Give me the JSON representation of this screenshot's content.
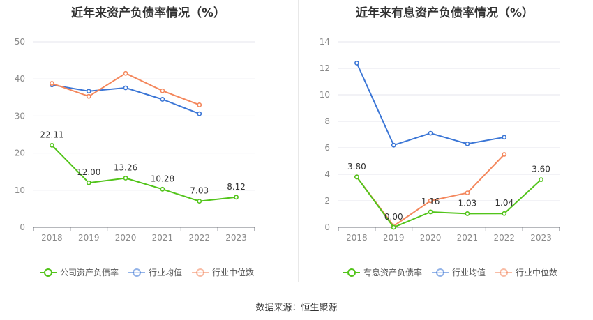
{
  "source_label": "数据来源：恒生聚源",
  "chart_data": [
    {
      "type": "line",
      "title": "近年来资产负债率情况（%）",
      "categories": [
        "2018",
        "2019",
        "2020",
        "2021",
        "2022",
        "2023"
      ],
      "ylim": [
        0,
        50
      ],
      "yticks": [
        0,
        10,
        20,
        30,
        40,
        50
      ],
      "grid": true,
      "legend_position": "bottom",
      "series": [
        {
          "name": "公司资产负债率",
          "color": "#52c41a",
          "values": [
            22.11,
            12.0,
            13.26,
            10.28,
            7.03,
            8.12
          ],
          "labels": [
            "22.11",
            "12.00",
            "13.26",
            "10.28",
            "7.03",
            "8.12"
          ]
        },
        {
          "name": "行业均值",
          "color": "#3b76d6",
          "values": [
            38.4,
            36.7,
            37.6,
            34.5,
            30.6,
            null
          ]
        },
        {
          "name": "行业中位数",
          "color": "#f4875c",
          "values": [
            38.8,
            35.3,
            41.5,
            36.8,
            33.0,
            null
          ]
        }
      ]
    },
    {
      "type": "line",
      "title": "近年来有息资产负债率情况（%）",
      "categories": [
        "2018",
        "2019",
        "2020",
        "2021",
        "2022",
        "2023"
      ],
      "ylim": [
        0,
        14
      ],
      "yticks": [
        0,
        2,
        4,
        6,
        8,
        10,
        12,
        14
      ],
      "grid": true,
      "legend_position": "bottom",
      "series": [
        {
          "name": "有息资产负债率",
          "color": "#52c41a",
          "values": [
            3.8,
            0.0,
            1.16,
            1.03,
            1.04,
            3.6
          ],
          "labels": [
            "3.80",
            "0.00",
            "1.16",
            "1.03",
            "1.04",
            "3.60"
          ]
        },
        {
          "name": "行业均值",
          "color": "#3b76d6",
          "values": [
            12.4,
            6.2,
            7.1,
            6.3,
            6.8,
            null
          ]
        },
        {
          "name": "行业中位数",
          "color": "#f4875c",
          "values": [
            3.8,
            0.1,
            2.0,
            2.6,
            5.5,
            null
          ]
        }
      ]
    }
  ]
}
